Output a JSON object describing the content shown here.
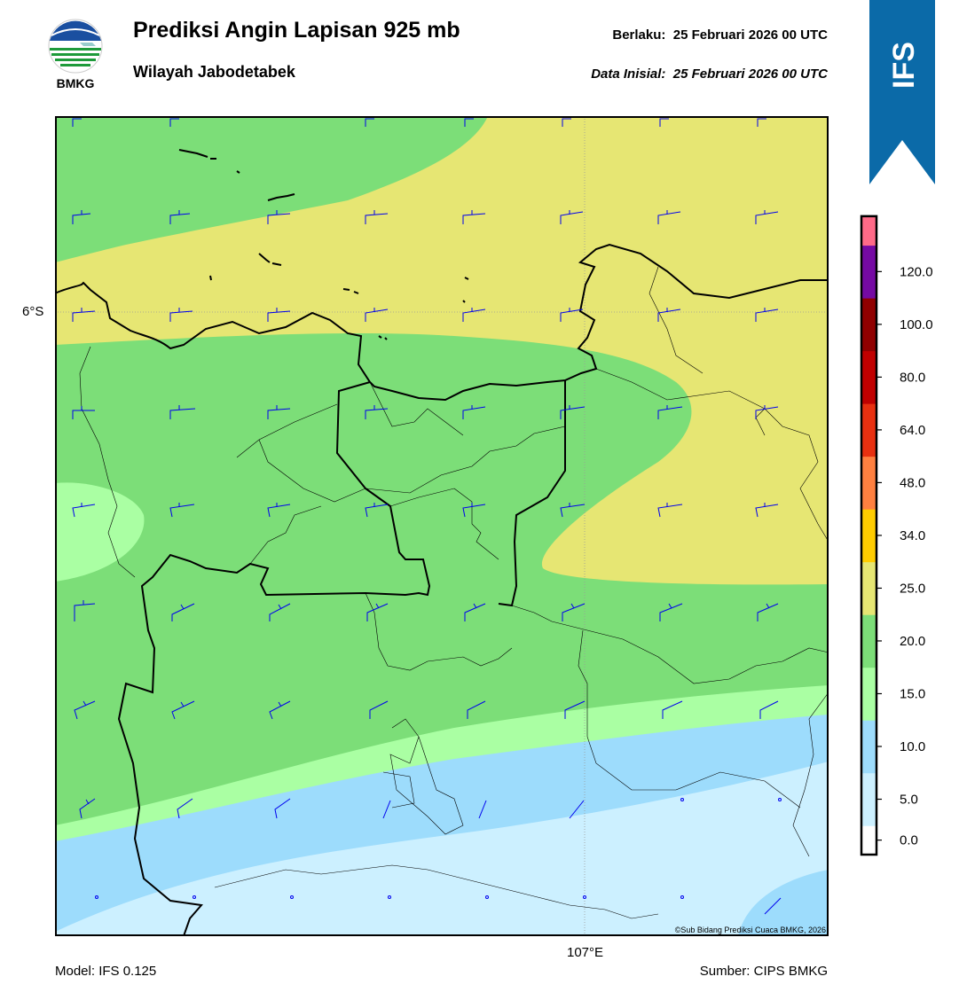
{
  "header": {
    "title": "Prediksi Angin Lapisan 925 mb",
    "subtitle": "Wilayah Jabodetabek",
    "valid_label": "Berlaku:",
    "valid_value": "25 Februari 2026 00 UTC",
    "init_label": "Data Inisial:",
    "init_value": "25 Februari 2026 00 UTC"
  },
  "logo": {
    "text": "BMKG"
  },
  "ribbon": {
    "text": "IFS",
    "color": "#0b6aa8"
  },
  "map": {
    "lat_label": "6°S",
    "lon_label": "107°E",
    "copyright": "©Sub Bidang Prediksi Cuaca BMKG, 2026"
  },
  "footer": {
    "model": "Model: IFS 0.125",
    "source": "Sumber: CIPS BMKG"
  },
  "colorbar": {
    "tick_labels": [
      "0.0",
      "5.0",
      "10.0",
      "15.0",
      "20.0",
      "25.0",
      "34.0",
      "48.0",
      "64.0",
      "80.0",
      "100.0",
      "120.0"
    ],
    "colors": [
      "#ffffff",
      "#ccf0ff",
      "#9ddcfc",
      "#aaffa3",
      "#7cde78",
      "#e6e673",
      "#ffcc00",
      "#ff8040",
      "#e83010",
      "#c00000",
      "#900000",
      "#750aa3",
      "#ff6a88"
    ]
  },
  "palette": {
    "calm": "#ccf0ff",
    "light": "#9ddcfc",
    "pale_green": "#aaffa3",
    "green": "#7cde78",
    "yellow": "#e6e673",
    "barb": "#0000ee"
  }
}
